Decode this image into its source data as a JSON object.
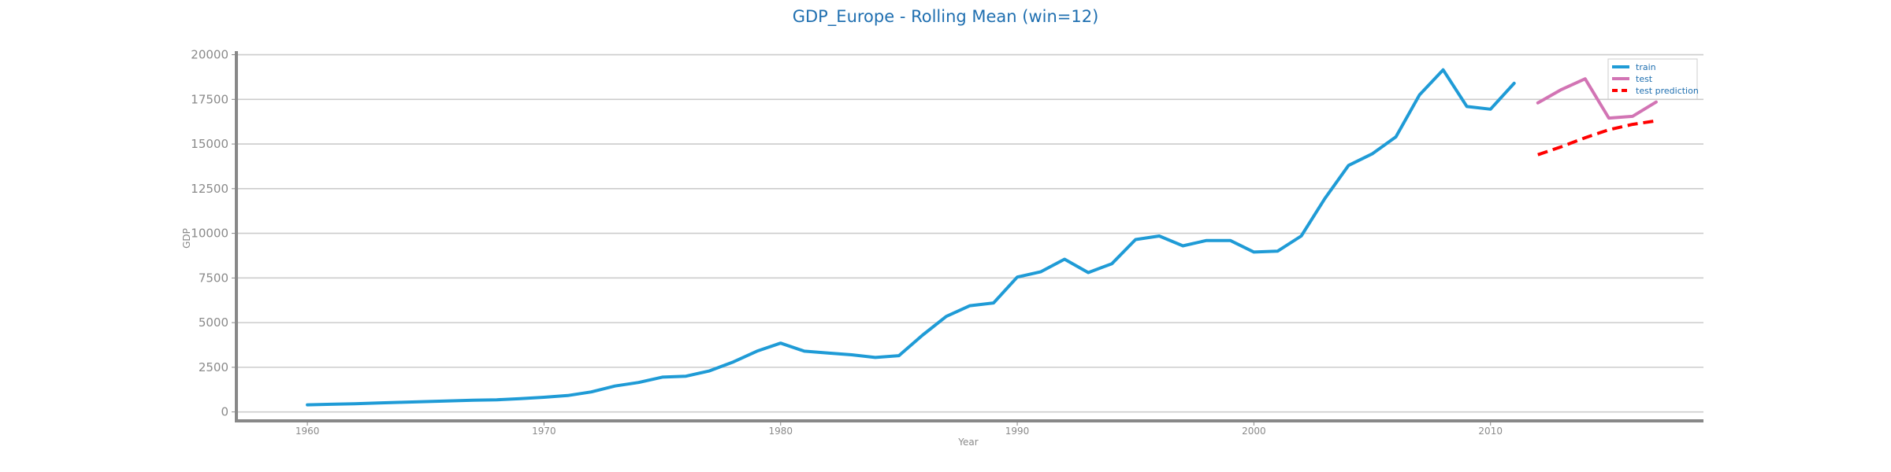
{
  "chart_data": {
    "type": "line",
    "title": "GDP_Europe - Rolling Mean (win=12)",
    "xlabel": "Year",
    "ylabel": "GDP",
    "xlim": [
      1957,
      2019
    ],
    "ylim": [
      -500,
      20200
    ],
    "x_ticks": [
      1960,
      1970,
      1980,
      1990,
      2000,
      2010
    ],
    "y_ticks": [
      0,
      2500,
      5000,
      7500,
      10000,
      12500,
      15000,
      17500,
      20000
    ],
    "grid": "horizontal",
    "legend_position": "top-right",
    "colors": {
      "train": "#1f9bd6",
      "test": "#d274b4",
      "test_prediction": "#ff0000",
      "title": "#1f6fb0"
    },
    "series": [
      {
        "name": "train",
        "style": "solid",
        "x": [
          1960,
          1961,
          1962,
          1963,
          1964,
          1965,
          1966,
          1967,
          1968,
          1969,
          1970,
          1971,
          1972,
          1973,
          1974,
          1975,
          1976,
          1977,
          1978,
          1979,
          1980,
          1981,
          1982,
          1983,
          1984,
          1985,
          1986,
          1987,
          1988,
          1989,
          1990,
          1991,
          1992,
          1993,
          1994,
          1995,
          1996,
          1997,
          1998,
          1999,
          2000,
          2001,
          2002,
          2003,
          2004,
          2005,
          2006,
          2007,
          2008,
          2009,
          2010,
          2011
        ],
        "values": [
          400,
          430,
          460,
          500,
          540,
          580,
          620,
          660,
          680,
          740,
          820,
          920,
          1120,
          1450,
          1650,
          1950,
          2000,
          2300,
          2800,
          3400,
          3850,
          3400,
          3300,
          3200,
          3050,
          3150,
          4300,
          5350,
          5950,
          6100,
          7550,
          7850,
          8550,
          7800,
          8300,
          9650,
          9850,
          9300,
          9600,
          9600,
          8950,
          9000,
          9850,
          11950,
          13800,
          14450,
          15400,
          17750,
          19150,
          17100,
          16950,
          18400
        ]
      },
      {
        "name": "test",
        "style": "solid",
        "x": [
          2012,
          2013,
          2014,
          2015,
          2016,
          2017
        ],
        "values": [
          17300,
          18050,
          18650,
          16450,
          16550,
          17350
        ]
      },
      {
        "name": "test prediction",
        "style": "dashed",
        "x": [
          2012,
          2013,
          2014,
          2015,
          2016,
          2017
        ],
        "values": [
          14400,
          14850,
          15350,
          15800,
          16100,
          16300
        ]
      }
    ]
  }
}
